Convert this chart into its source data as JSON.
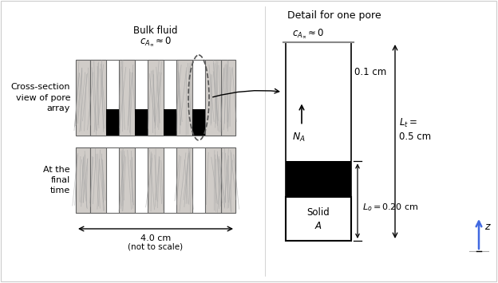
{
  "fig_width": 6.24,
  "fig_height": 3.55,
  "bg_color": "#ffffff",
  "left_panel_label": "Cross-section\nview of pore\narray",
  "bottom_left_label": "At the\nfinal\ntime",
  "bulk_fluid_label": "Bulk fluid",
  "bulk_fluid_ca": "$c_{A_\\infty} \\approx 0$",
  "detail_title": "Detail for one pore",
  "detail_ca": "$c_{A_\\infty} \\approx 0$",
  "pore_label_01": "0.1 cm",
  "na_label": "$N_A$",
  "lt_label": "$L_t =$\n0.5 cm",
  "lo_label": "$L_o = 0.20$ cm",
  "solid_label": "Solid\n$A$",
  "width_label": "4.0 cm",
  "scale_note": "(not to scale)",
  "z_label": "$z$",
  "z_arrow_color": "#4169E1",
  "marble_base": "#d0ccc8",
  "marble_line": "#a0a0a0"
}
